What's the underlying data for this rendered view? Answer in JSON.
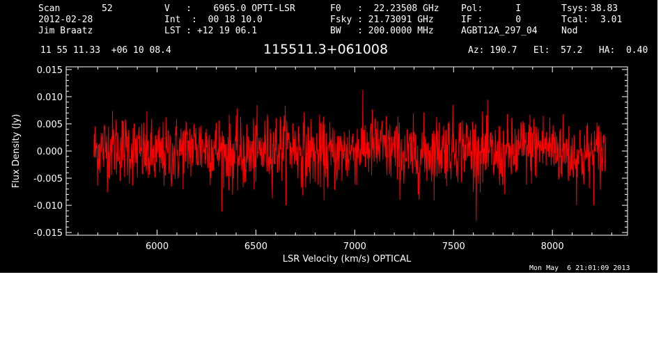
{
  "header": {
    "col1": {
      "l1_label": "Scan",
      "l1_value": "52",
      "l2": "2012-02-28",
      "l3": "Jim Braatz"
    },
    "col2": {
      "l1": "V   :    6965.0 OPTI-LSR",
      "l2": "Int  :  00 18 10.0",
      "l3": "LST : +12 19 06.1"
    },
    "col3": {
      "l1": "F0   :  22.23508 GHz",
      "l2": "Fsky : 21.73091 GHz",
      "l3": "BW   : 200.0000 MHz"
    },
    "col4": {
      "l1": "Pol:      I",
      "l2": "IF :      0",
      "l3": "AGBT12A_297_04"
    },
    "col5": {
      "l1_label": "Tsys:",
      "l1_value": "38.83",
      "l2_label": "Tcal:",
      "l2_value": "3.01",
      "l3": "Nod"
    },
    "coords": "11 55 11.33  +06 10 08.4",
    "source": "115511.3+061008",
    "az_el_ha": "Az: 190.7   El:  57.2   HA:  0.40"
  },
  "timestamp": "Mon May  6 21:01:09 2013",
  "chart_data": {
    "type": "line",
    "xlabel": "LSR Velocity (km/s) OPTICAL",
    "ylabel": "Flux Density (Jy)",
    "xlim": [
      5540,
      8380
    ],
    "ylim": [
      -0.0155,
      0.0155
    ],
    "x_ticks": [
      6000,
      6500,
      7000,
      7500,
      8000
    ],
    "x_tick_labels": [
      "6000",
      "6500",
      "7000",
      "7500",
      "8000"
    ],
    "y_ticks": [
      -0.015,
      -0.01,
      -0.005,
      0.0,
      0.005,
      0.01,
      0.015
    ],
    "y_tick_labels": [
      "-0.015",
      "-0.010",
      "-0.005",
      "0.000",
      "0.005",
      "0.010",
      "0.015"
    ],
    "series": [
      {
        "color": "#ff0000",
        "x_range": [
          5680,
          8270
        ],
        "n_channels": 1400,
        "mean": 0.0,
        "rms": 0.0032,
        "peak_max": 0.0135,
        "peak_min": -0.0128
      }
    ],
    "grid": false
  }
}
